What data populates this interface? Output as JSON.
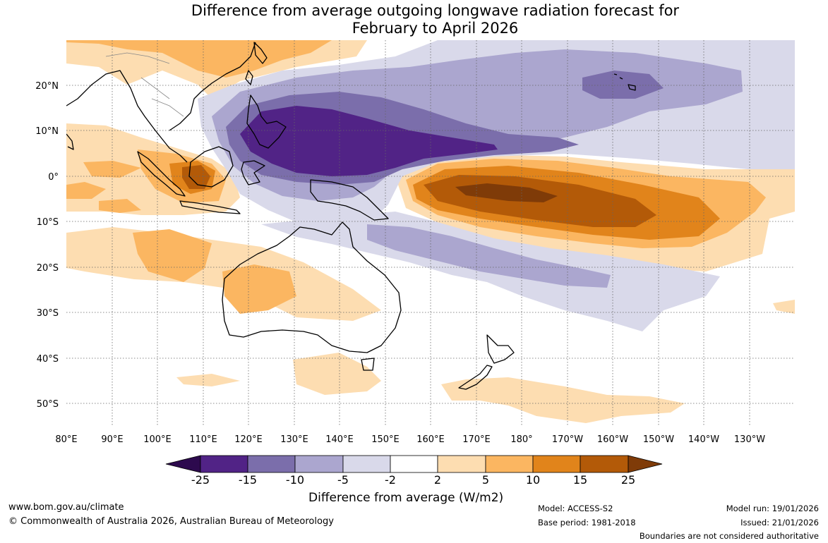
{
  "title": {
    "line1": "Difference from average outgoing longwave radiation forecast for",
    "line2": "February to April 2026"
  },
  "axes": {
    "lat_labels": [
      "20°N",
      "10°N",
      "0°",
      "10°S",
      "20°S",
      "30°S",
      "40°S",
      "50°S"
    ],
    "lon_labels": [
      "80°E",
      "90°E",
      "100°E",
      "110°E",
      "120°E",
      "130°E",
      "140°E",
      "150°E",
      "160°E",
      "170°E",
      "180°",
      "170°W",
      "160°W",
      "150°W",
      "140°W",
      "130°W"
    ]
  },
  "colorbar": {
    "title": "Difference from average (W/m2)",
    "labels": [
      "-25",
      "-15",
      "-10",
      "-5",
      "-2",
      "2",
      "5",
      "10",
      "15",
      "25"
    ],
    "colors": {
      "below_min": "#2d0a4e",
      "c1": "#512386",
      "c2": "#7b6eab",
      "c3": "#aba6cf",
      "c4": "#d9d9ea",
      "c5": "#ffffff",
      "c6": "#fdddb1",
      "c7": "#fbb661",
      "c8": "#e1841b",
      "c9": "#b35a08",
      "above_max": "#7f3b08"
    }
  },
  "footer": {
    "website": "www.bom.gov.au/climate",
    "copyright": "© Commonwealth of Australia 2026, Australian Bureau of Meteorology",
    "model": "Model: ACCESS-S2",
    "base_period": "Base period: 1981-2018",
    "model_run": "Model run: 19/01/2026",
    "issued": "Issued: 21/01/2026",
    "disclaimer": "Boundaries are not considered authoritative"
  }
}
